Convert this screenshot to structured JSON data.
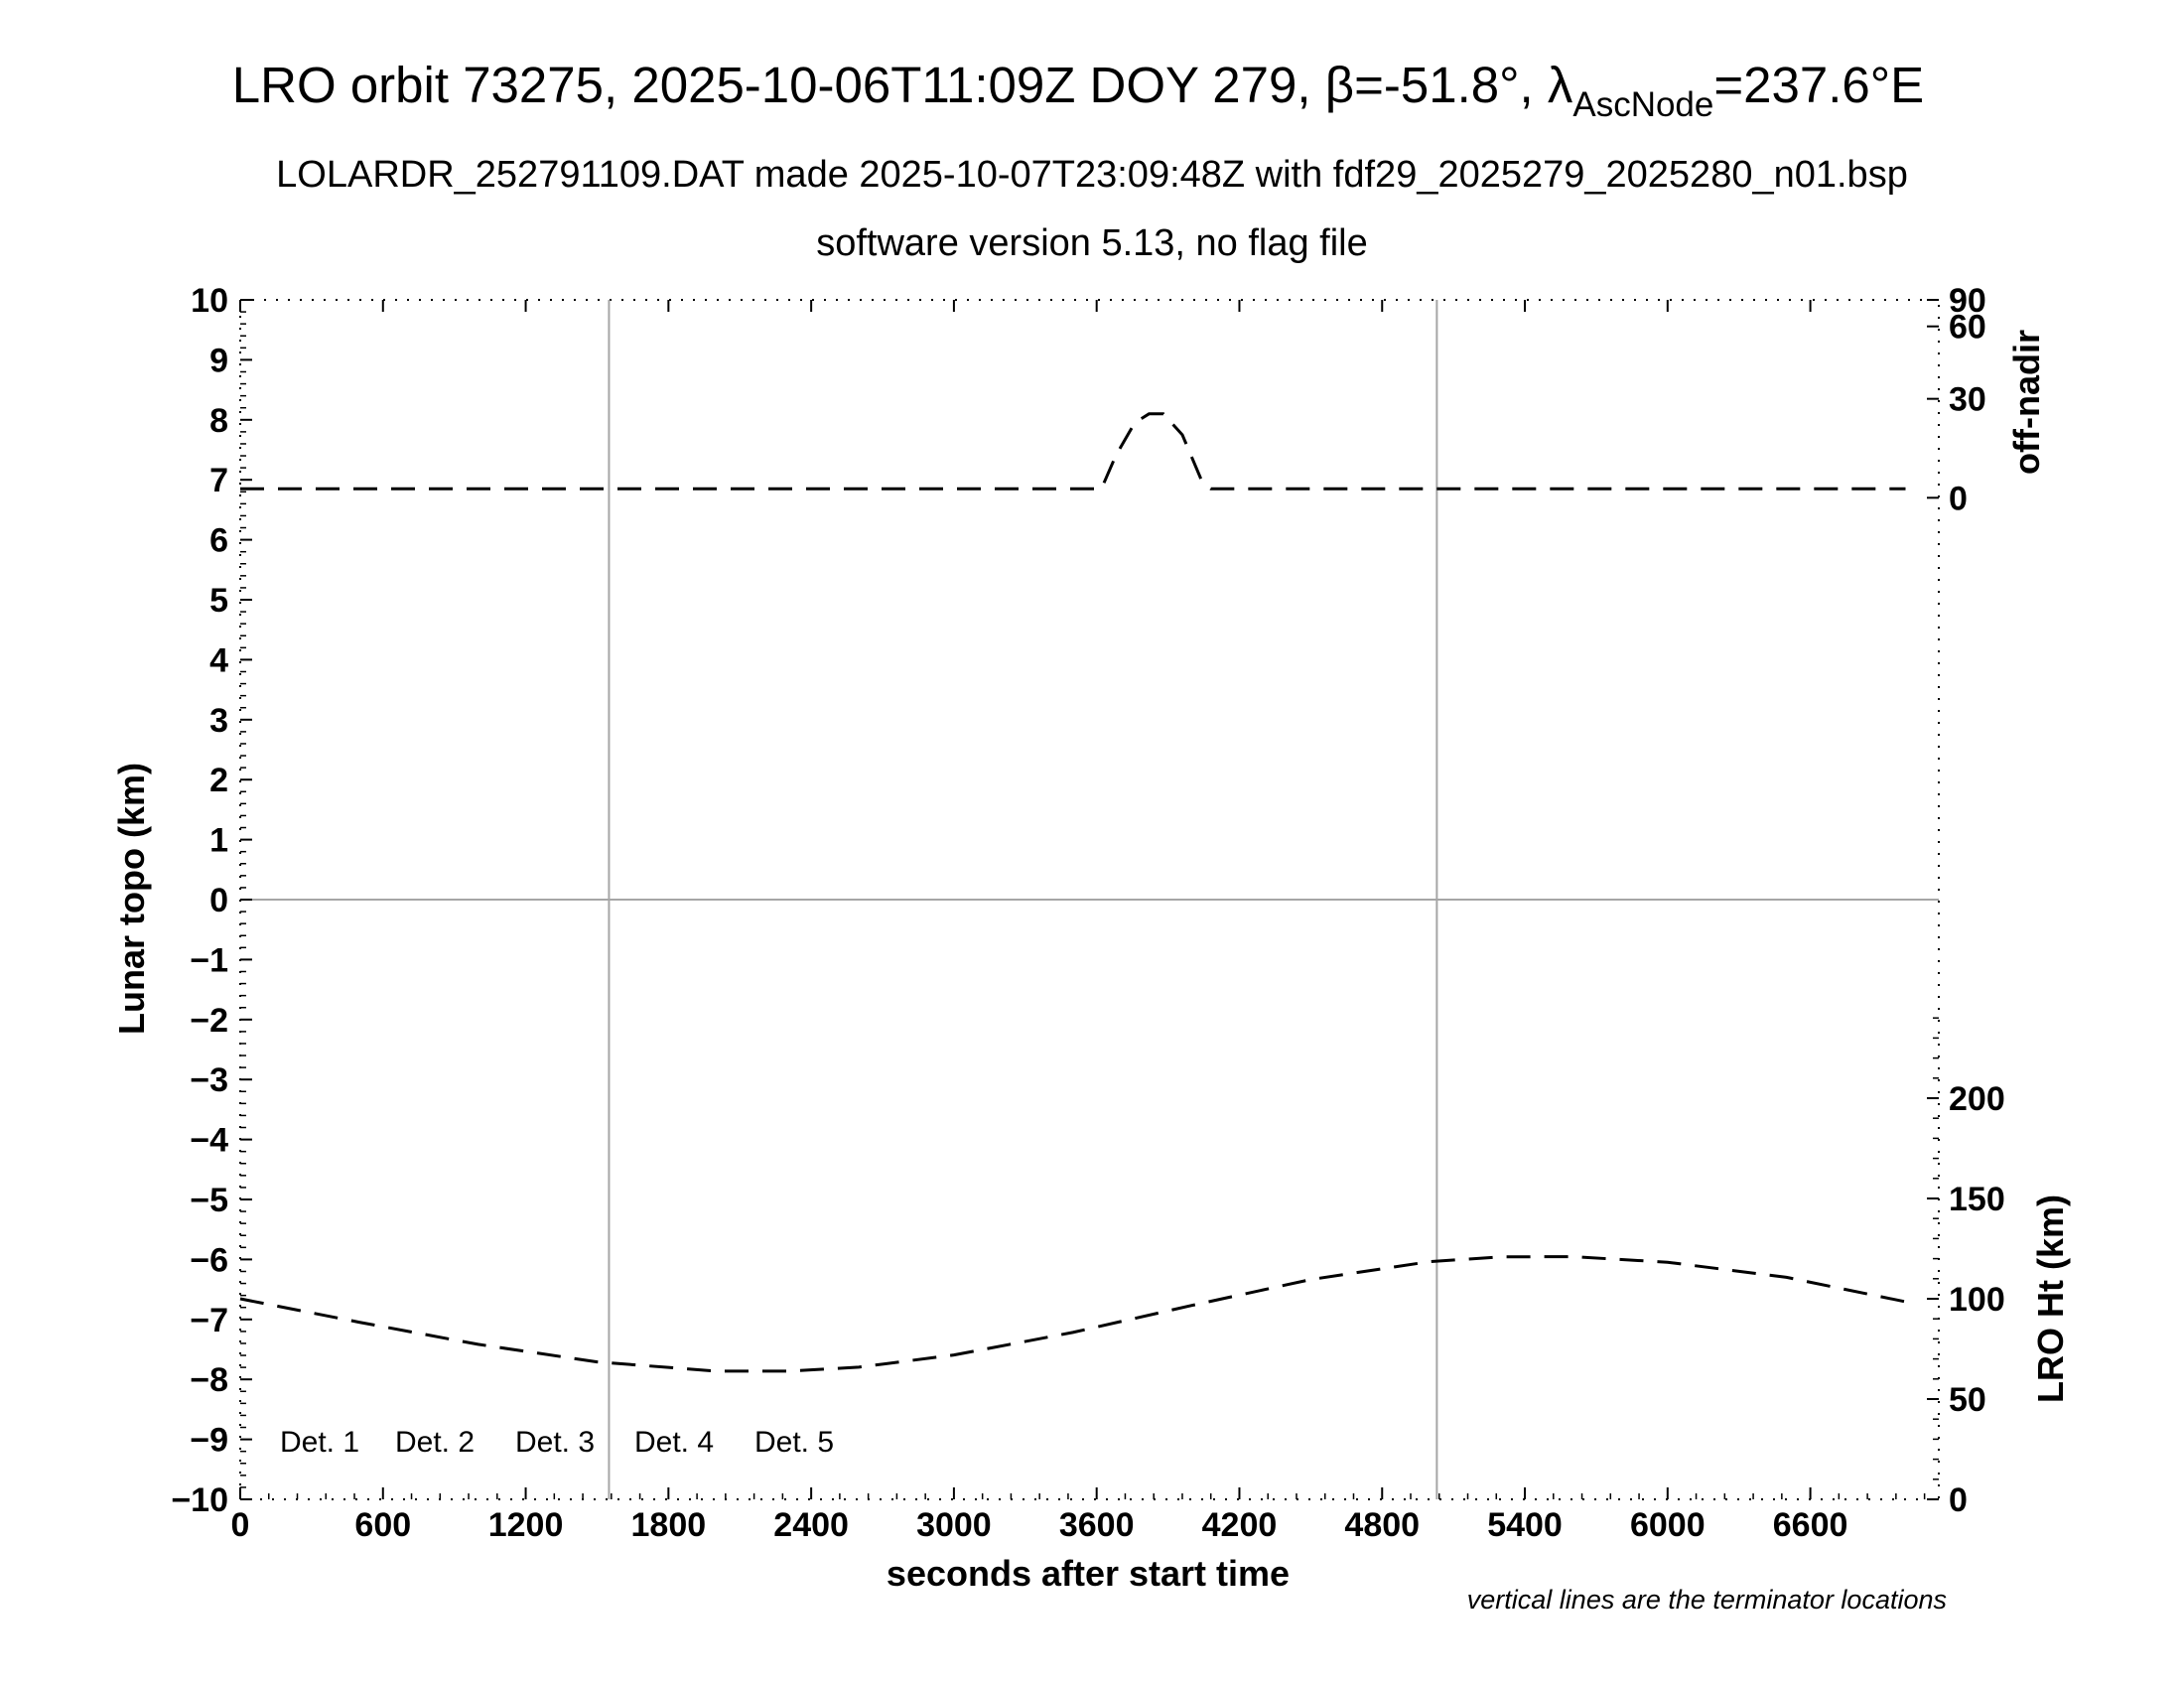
{
  "header": {
    "title_main": "LRO orbit 73275, 2025-10-06T11:09Z DOY 279, β=-51.8°, λ",
    "title_sub": "AscNode",
    "title_tail": "=237.6°E",
    "line2": "LOLARDR_252791109.DAT made 2025-10-07T23:09:48Z with fdf29_2025279_2025280_n01.bsp",
    "line3": "software version 5.13, no flag file"
  },
  "footnote": "vertical lines are the terminator locations",
  "chart_data": {
    "type": "line",
    "xlabel": "seconds after start time",
    "ylabel_left": "Lunar topo (km)",
    "ylabel_right_top": "off-nadir",
    "ylabel_right_bottom": "LRO Ht (km)",
    "xlim": [
      0,
      7140
    ],
    "x_ticks": [
      "0",
      "600",
      "1200",
      "1800",
      "2400",
      "3000",
      "3600",
      "4200",
      "4800",
      "5400",
      "6000",
      "6600"
    ],
    "ylim_left": [
      -10,
      10
    ],
    "y_ticks_left": [
      "10",
      "9",
      "8",
      "7",
      "6",
      "5",
      "4",
      "3",
      "2",
      "1",
      "0",
      "−1",
      "−2",
      "−3",
      "−4",
      "−5",
      "−6",
      "−7",
      "−8",
      "−9",
      "−10"
    ],
    "offnadir_ticks": [
      "0",
      "30",
      "60",
      "90"
    ],
    "ht_ticks": [
      "0",
      "50",
      "100",
      "150",
      "200"
    ],
    "ht_range_km": [
      0,
      200
    ],
    "terminators_x": [
      1550,
      5030
    ],
    "legend": [
      {
        "label": "Det. 1",
        "color": "#000000"
      },
      {
        "label": "Det. 2",
        "color": "#0000ff"
      },
      {
        "label": "Det. 3",
        "color": "#00ff00"
      },
      {
        "label": "Det. 4",
        "color": "#ffa500"
      },
      {
        "label": "Det. 5",
        "color": "#ff0000"
      }
    ],
    "series": [
      {
        "x": [
          0,
          3600,
          3620,
          3680,
          3760,
          3820,
          3880,
          3960,
          4040,
          4080,
          7000
        ],
        "y": [
          6.85,
          6.85,
          6.85,
          7.4,
          7.95,
          8.1,
          8.1,
          7.75,
          7.0,
          6.85,
          6.85
        ]
      },
      {
        "x": [
          0,
          500,
          1000,
          1500,
          2000,
          2300,
          2600,
          3000,
          3500,
          4000,
          4500,
          5000,
          5300,
          5600,
          6000,
          6500,
          7000
        ],
        "y": [
          100,
          88.3,
          77.3,
          68.5,
          63.9,
          63.9,
          65.9,
          72.0,
          83.2,
          96.7,
          109.6,
          118.5,
          120.9,
          121.0,
          118.2,
          110.7,
          98.5
        ]
      }
    ]
  }
}
